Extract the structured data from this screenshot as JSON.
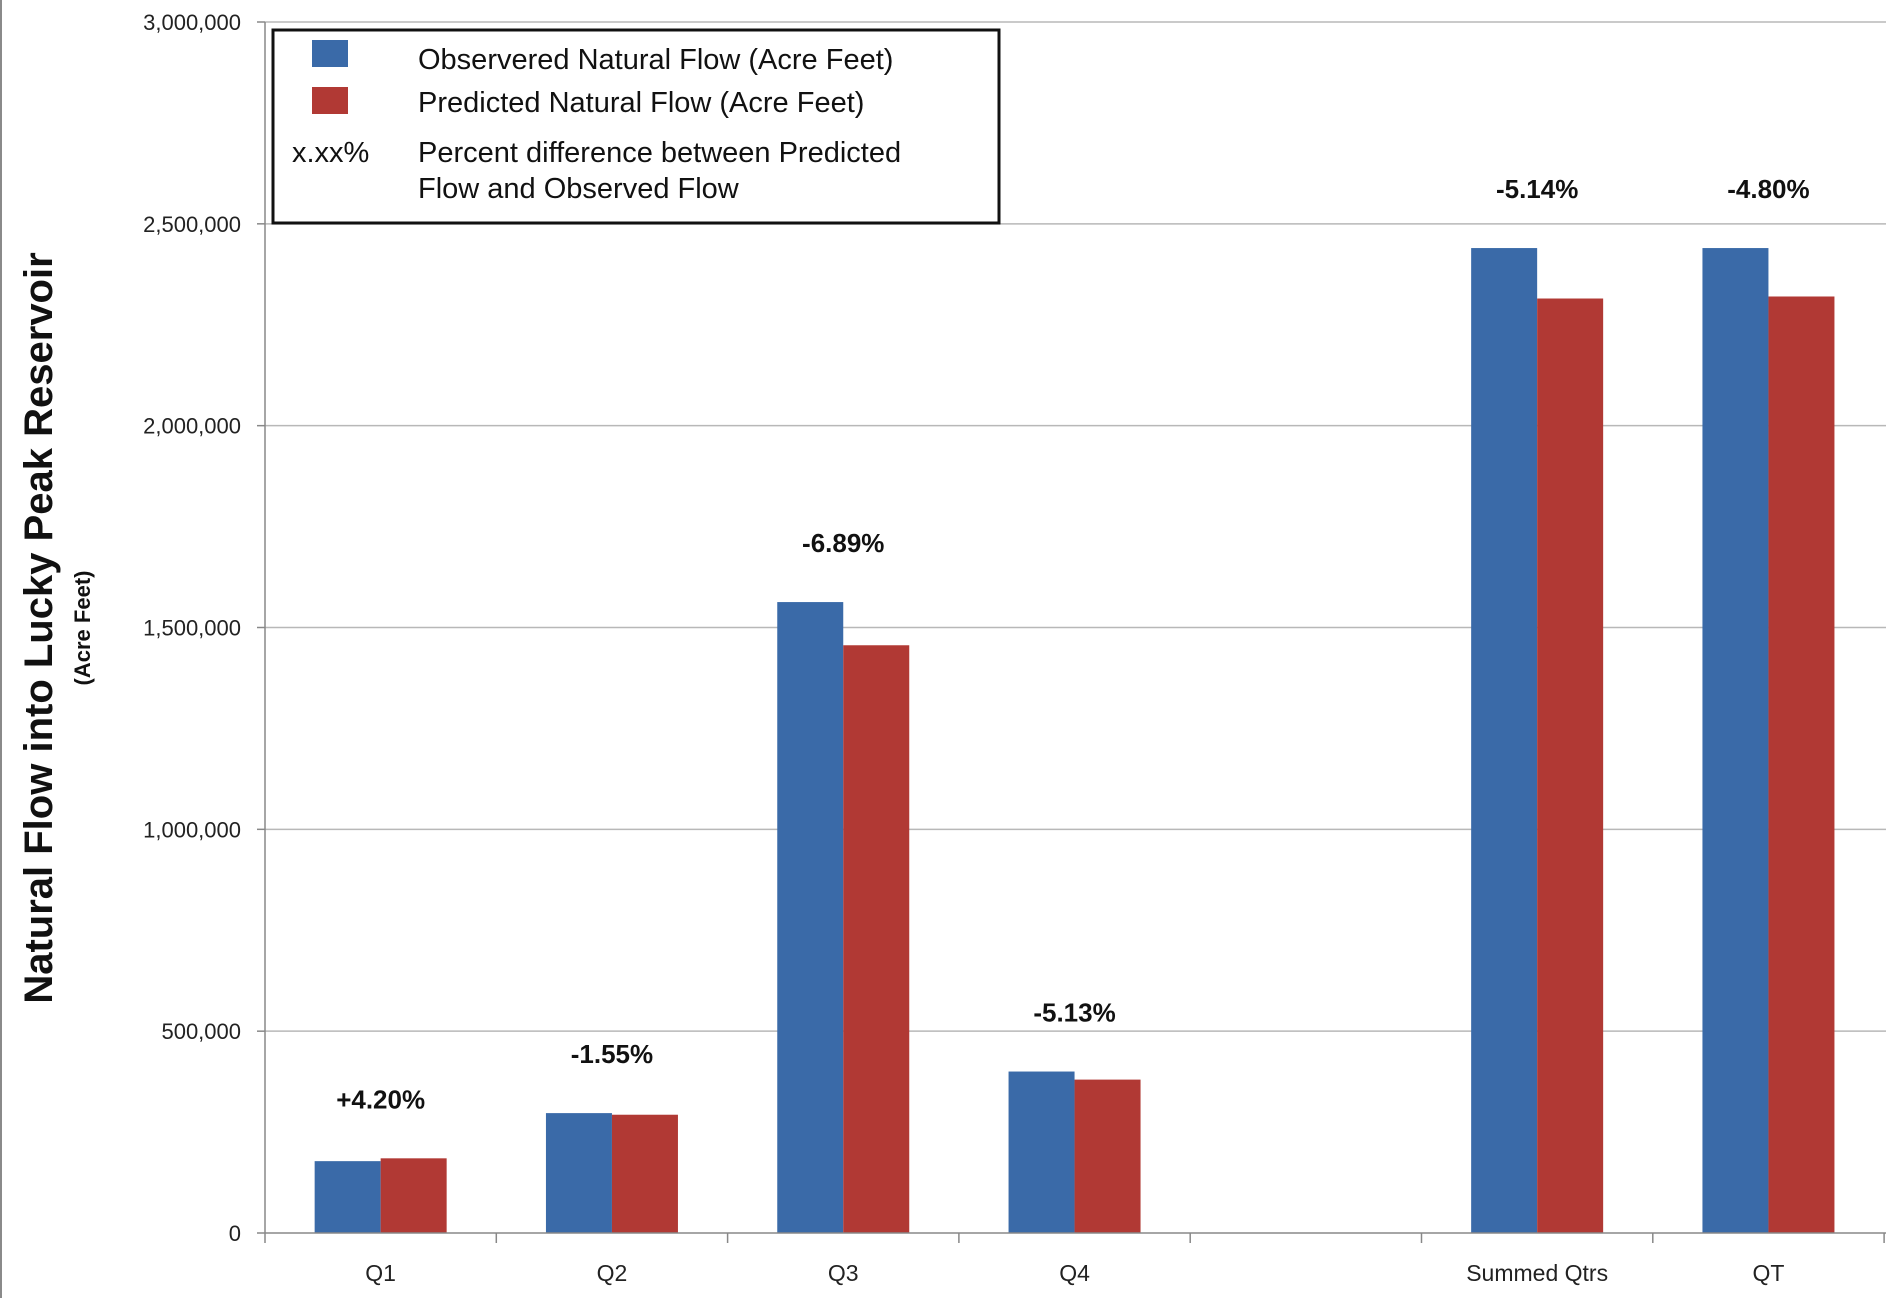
{
  "chart_data": {
    "type": "bar",
    "title": "",
    "xlabel": "",
    "ylabel": "Natural Flow into Lucky Peak Reservoir",
    "ylabel_sub": "(Acre Feet)",
    "ylim": [
      0,
      3000000
    ],
    "yticks": [
      0,
      500000,
      1000000,
      1500000,
      2000000,
      2500000,
      3000000
    ],
    "ytick_labels": [
      "0",
      "500,000",
      "1,000,000",
      "1,500,000",
      "2,000,000",
      "2,500,000",
      "3,000,000"
    ],
    "grid": true,
    "legend_position": "top-left",
    "categories": [
      "Q1",
      "Q2",
      "Q3",
      "Q4",
      "",
      "Summed Qtrs",
      "QT"
    ],
    "series": [
      {
        "name": "Observered Natural Flow (Acre Feet)",
        "color": "#3a6aa8",
        "values": [
          178000,
          297000,
          1563000,
          400000,
          null,
          2440000,
          2440000
        ]
      },
      {
        "name": "Predicted Natural Flow (Acre Feet)",
        "color": "#b13934",
        "values": [
          185000,
          293000,
          1456000,
          380000,
          null,
          2315000,
          2320000
        ]
      }
    ],
    "annotations": [
      "+4.20%",
      "-1.55%",
      "-6.89%",
      "-5.13%",
      "",
      "-5.14%",
      "-4.80%"
    ],
    "legend_note": {
      "symbol": "x.xx%",
      "line1": "Percent difference between Predicted",
      "line2": "Flow and Observed Flow"
    }
  }
}
